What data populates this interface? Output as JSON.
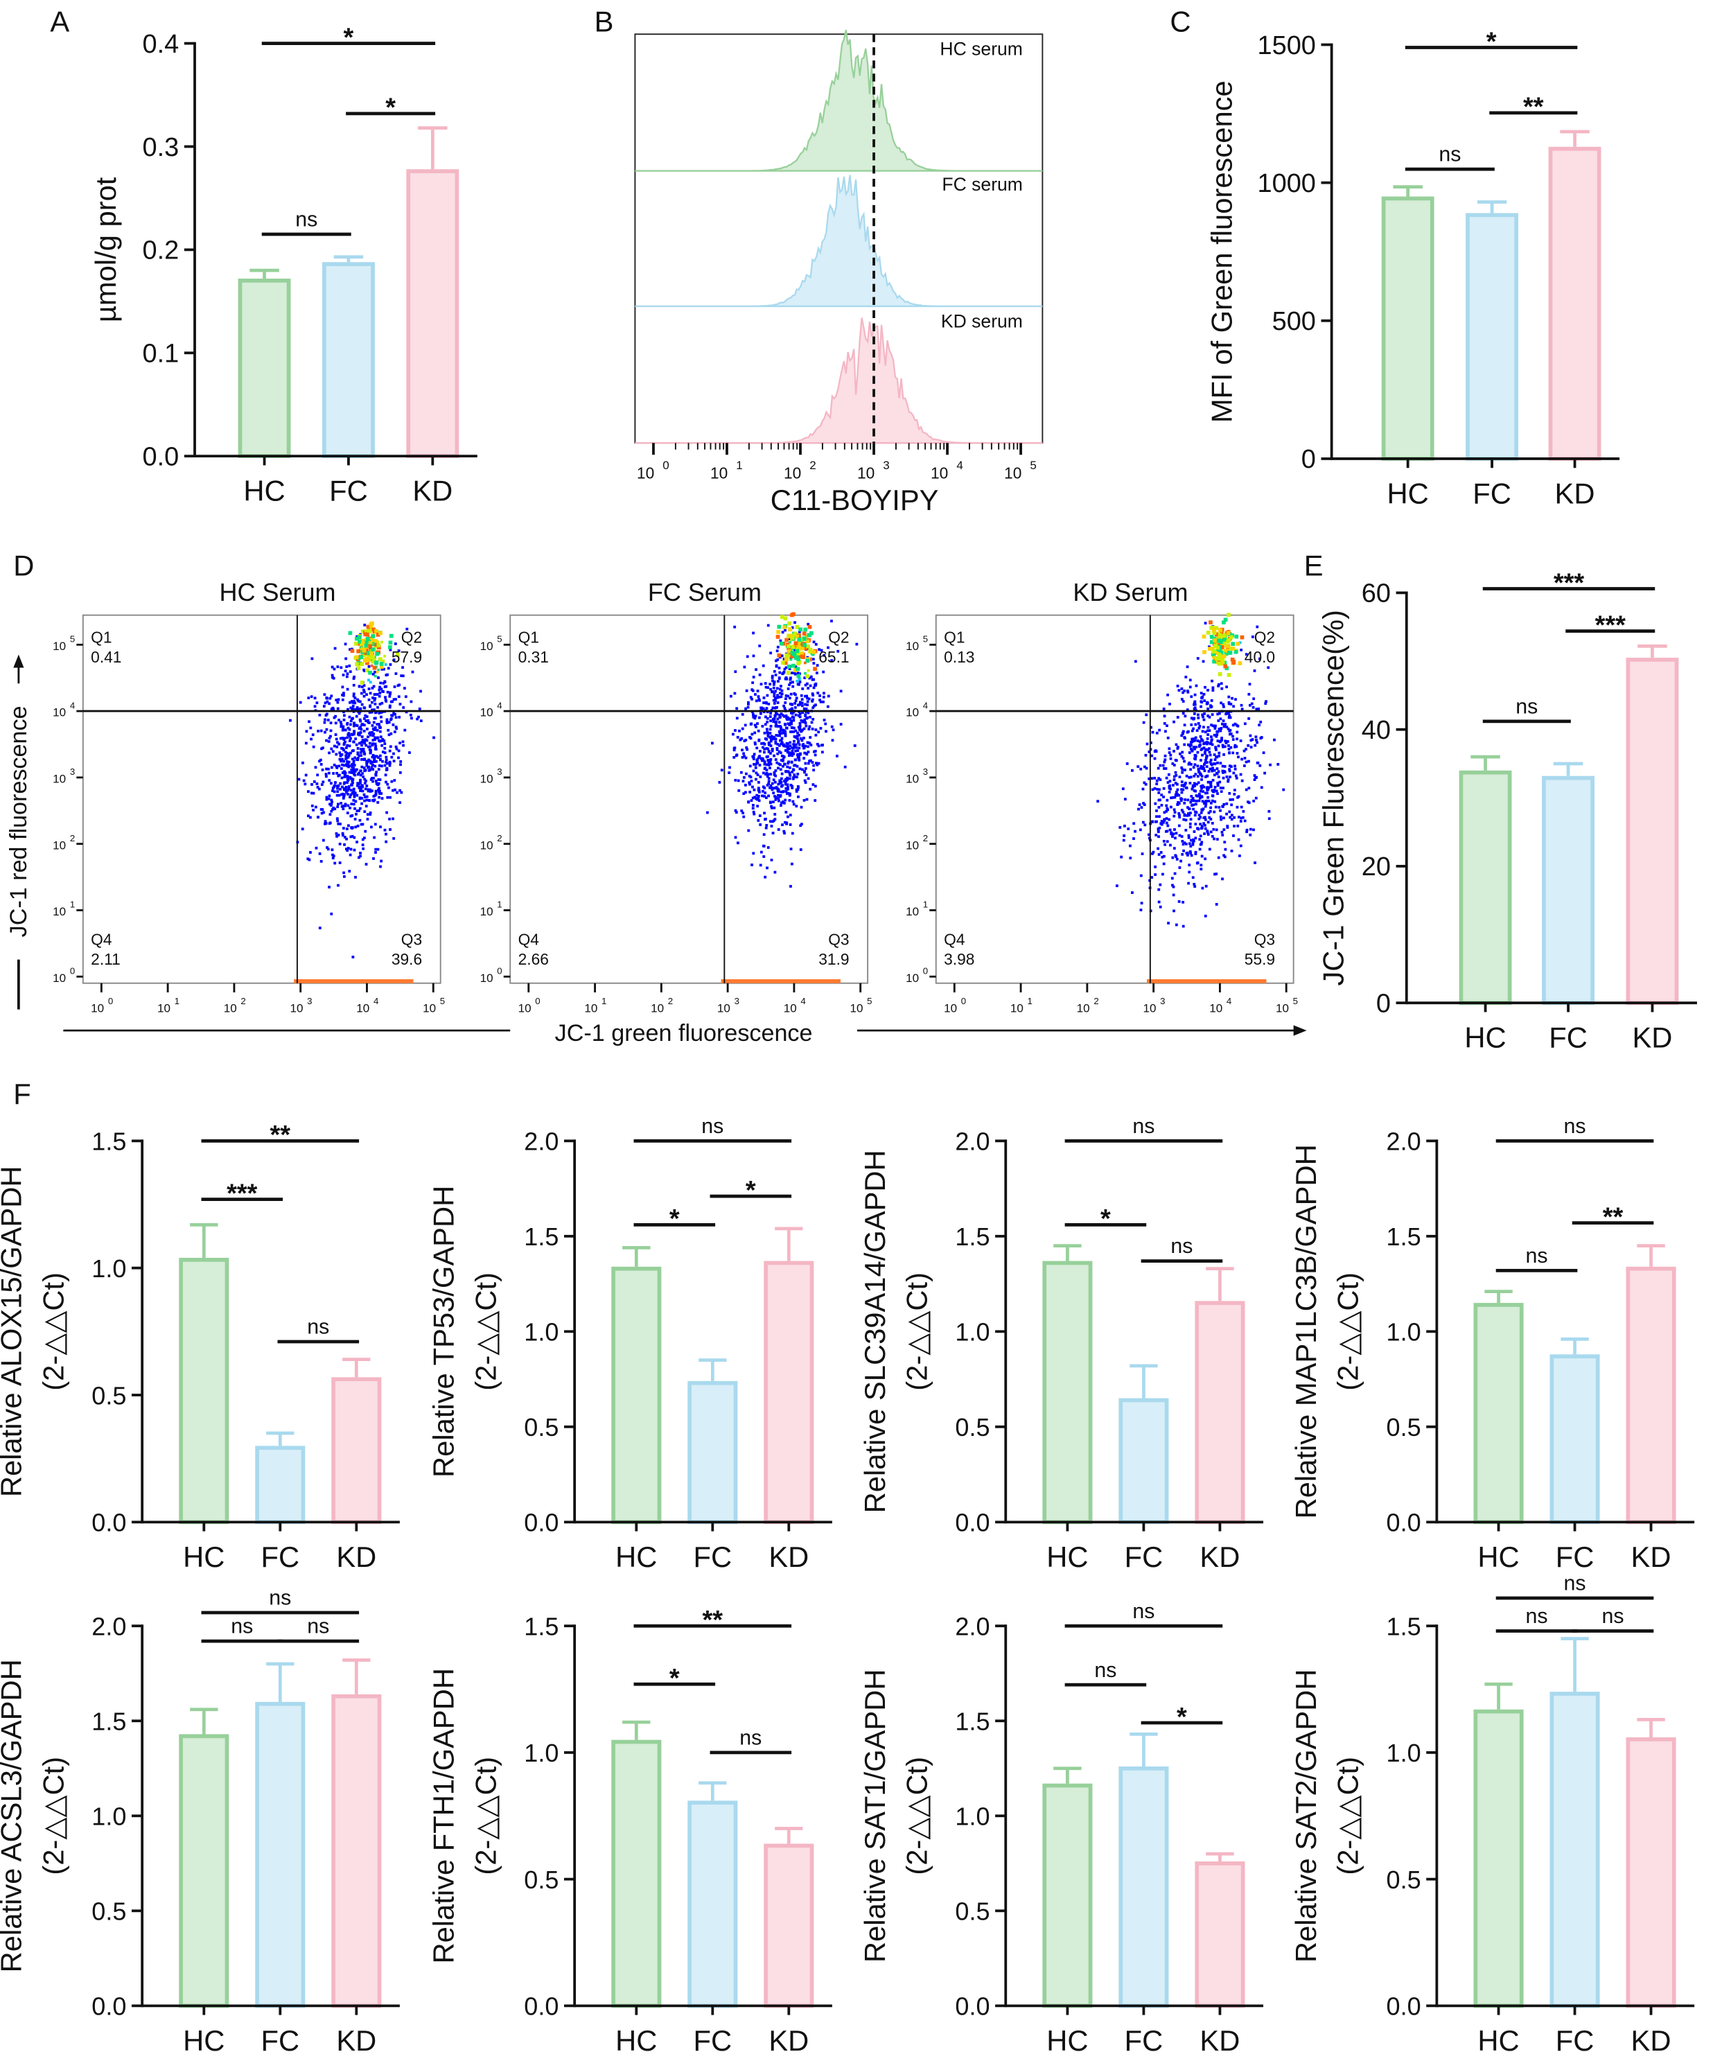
{
  "panel_letters": [
    "A",
    "B",
    "C",
    "D",
    "E",
    "F"
  ],
  "colors": {
    "HC": {
      "fill": "#d6edd7",
      "stroke": "#97d09a"
    },
    "FC": {
      "fill": "#d8eef8",
      "stroke": "#a9d9ee"
    },
    "KD": {
      "fill": "#fbdfe5",
      "stroke": "#f4b6c4"
    }
  },
  "chart_data": [
    {
      "id": "A",
      "type": "bar",
      "ylabel": [
        "µmol/g prot"
      ],
      "ylim": [
        0,
        0.4
      ],
      "yticks": [
        "0.0",
        "0.1",
        "0.2",
        "0.3",
        "0.4"
      ],
      "categories": [
        "HC",
        "FC",
        "KD"
      ],
      "values": [
        0.172,
        0.188,
        0.278
      ],
      "err_top": [
        0.18,
        0.193,
        0.318
      ],
      "sig": [
        {
          "from": 0,
          "to": 1,
          "label": "ns",
          "y": 0.215
        },
        {
          "from": 1,
          "to": 2,
          "label": "*",
          "y": 0.332
        },
        {
          "from": 0,
          "to": 2,
          "label": "*",
          "y": 0.4
        }
      ]
    },
    {
      "id": "C",
      "type": "bar",
      "ylabel": [
        "MFI of Green fluorescence"
      ],
      "ylim": [
        0,
        1500
      ],
      "yticks": [
        "0",
        "500",
        "1000",
        "1500"
      ],
      "categories": [
        "HC",
        "FC",
        "KD"
      ],
      "values": [
        950,
        890,
        1130
      ],
      "err_top": [
        985,
        930,
        1185
      ],
      "sig": [
        {
          "from": 0,
          "to": 1,
          "label": "ns",
          "y": 1049
        },
        {
          "from": 1,
          "to": 2,
          "label": "**",
          "y": 1253
        },
        {
          "from": 0,
          "to": 2,
          "label": "*",
          "y": 1490
        }
      ]
    },
    {
      "id": "E",
      "type": "bar",
      "ylabel": [
        "JC-1 Green Fluorescence(%)"
      ],
      "ylim": [
        0,
        60
      ],
      "yticks": [
        "0",
        "20",
        "40",
        "60"
      ],
      "categories": [
        "HC",
        "FC",
        "KD"
      ],
      "values": [
        34,
        33.2,
        50.5
      ],
      "err_top": [
        36,
        35,
        52.2
      ],
      "sig": [
        {
          "from": 0,
          "to": 1,
          "label": "ns",
          "y": 41.2
        },
        {
          "from": 1,
          "to": 2,
          "label": "***",
          "y": 54.4
        },
        {
          "from": 0,
          "to": 2,
          "label": "***",
          "y": 60.6
        }
      ]
    },
    {
      "id": "F-ALOX15",
      "type": "bar",
      "ylabel": [
        "Relative ALOX15/GAPDH",
        "(2-△△Ct)"
      ],
      "ylim": [
        0,
        1.5
      ],
      "yticks": [
        "0.0",
        "0.5",
        "1.0",
        "1.5"
      ],
      "categories": [
        "HC",
        "FC",
        "KD"
      ],
      "values": [
        1.04,
        0.3,
        0.57
      ],
      "err_top": [
        1.17,
        0.35,
        0.64
      ],
      "sig": [
        {
          "from": 0,
          "to": 1,
          "label": "***",
          "y": 1.27
        },
        {
          "from": 1,
          "to": 2,
          "label": "ns",
          "y": 0.71
        },
        {
          "from": 0,
          "to": 2,
          "label": "**",
          "y": 1.5
        }
      ]
    },
    {
      "id": "F-TP53",
      "type": "bar",
      "ylabel": [
        "Relative TP53/GAPDH",
        "(2-△△Ct)"
      ],
      "ylim": [
        0,
        2
      ],
      "yticks": [
        "0.0",
        "0.5",
        "1.0",
        "1.5",
        "2.0"
      ],
      "categories": [
        "HC",
        "FC",
        "KD"
      ],
      "values": [
        1.34,
        0.74,
        1.37
      ],
      "err_top": [
        1.44,
        0.85,
        1.54
      ],
      "sig": [
        {
          "from": 0,
          "to": 1,
          "label": "*",
          "y": 1.56
        },
        {
          "from": 1,
          "to": 2,
          "label": "*",
          "y": 1.71
        },
        {
          "from": 0,
          "to": 2,
          "label": "ns",
          "y": 2.0
        }
      ]
    },
    {
      "id": "F-SLC39A14",
      "type": "bar",
      "ylabel": [
        "Relative SLC39A14/GAPDH",
        "(2-△△Ct)"
      ],
      "ylim": [
        0,
        2
      ],
      "yticks": [
        "0.0",
        "0.5",
        "1.0",
        "1.5",
        "2.0"
      ],
      "categories": [
        "HC",
        "FC",
        "KD"
      ],
      "values": [
        1.37,
        0.65,
        1.16
      ],
      "err_top": [
        1.45,
        0.82,
        1.33
      ],
      "sig": [
        {
          "from": 0,
          "to": 1,
          "label": "*",
          "y": 1.56
        },
        {
          "from": 1,
          "to": 2,
          "label": "ns",
          "y": 1.37
        },
        {
          "from": 0,
          "to": 2,
          "label": "ns",
          "y": 2.0
        }
      ]
    },
    {
      "id": "F-MAP1LC3B",
      "type": "bar",
      "ylabel": [
        "Relative MAP1LC3B/GAPDH",
        "(2-△△Ct)"
      ],
      "ylim": [
        0,
        2
      ],
      "yticks": [
        "0.0",
        "0.5",
        "1.0",
        "1.5",
        "2.0"
      ],
      "categories": [
        "HC",
        "FC",
        "KD"
      ],
      "values": [
        1.15,
        0.88,
        1.34
      ],
      "err_top": [
        1.21,
        0.96,
        1.45
      ],
      "sig": [
        {
          "from": 0,
          "to": 1,
          "label": "ns",
          "y": 1.32
        },
        {
          "from": 1,
          "to": 2,
          "label": "**",
          "y": 1.57
        },
        {
          "from": 0,
          "to": 2,
          "label": "ns",
          "y": 2.0
        }
      ]
    },
    {
      "id": "F-ACSL3",
      "type": "bar",
      "ylabel": [
        "Relative ACSL3/GAPDH",
        "(2-△△Ct)"
      ],
      "ylim": [
        0,
        2
      ],
      "yticks": [
        "0.0",
        "0.5",
        "1.0",
        "1.5",
        "2.0"
      ],
      "categories": [
        "HC",
        "FC",
        "KD"
      ],
      "values": [
        1.43,
        1.6,
        1.64
      ],
      "err_top": [
        1.56,
        1.8,
        1.82
      ],
      "sig": [
        {
          "from": 0,
          "to": 1,
          "label": "ns",
          "y": 1.92
        },
        {
          "from": 1,
          "to": 2,
          "label": "ns",
          "y": 1.92
        },
        {
          "from": 0,
          "to": 2,
          "label": "ns",
          "y": 2.07
        }
      ]
    },
    {
      "id": "F-FTH1",
      "type": "bar",
      "ylabel": [
        "Relative FTH1/GAPDH",
        "(2-△△Ct)"
      ],
      "ylim": [
        0,
        1.5
      ],
      "yticks": [
        "0.0",
        "0.5",
        "1.0",
        "1.5"
      ],
      "categories": [
        "HC",
        "FC",
        "KD"
      ],
      "values": [
        1.05,
        0.81,
        0.64
      ],
      "err_top": [
        1.12,
        0.88,
        0.7
      ],
      "sig": [
        {
          "from": 0,
          "to": 1,
          "label": "*",
          "y": 1.27
        },
        {
          "from": 1,
          "to": 2,
          "label": "ns",
          "y": 1.0
        },
        {
          "from": 0,
          "to": 2,
          "label": "**",
          "y": 1.5
        }
      ]
    },
    {
      "id": "F-SAT1",
      "type": "bar",
      "ylabel": [
        "Relative SAT1/GAPDH",
        "(2-△△Ct)"
      ],
      "ylim": [
        0,
        2
      ],
      "yticks": [
        "0.0",
        "0.5",
        "1.0",
        "1.5",
        "2.0"
      ],
      "categories": [
        "HC",
        "FC",
        "KD"
      ],
      "values": [
        1.17,
        1.26,
        0.76
      ],
      "err_top": [
        1.25,
        1.43,
        0.8
      ],
      "sig": [
        {
          "from": 0,
          "to": 1,
          "label": "ns",
          "y": 1.69
        },
        {
          "from": 1,
          "to": 2,
          "label": "*",
          "y": 1.49
        },
        {
          "from": 0,
          "to": 2,
          "label": "ns",
          "y": 2.0
        }
      ]
    },
    {
      "id": "F-SAT2",
      "type": "bar",
      "ylabel": [
        "Relative SAT2/GAPDH",
        "(2-△△Ct)"
      ],
      "ylim": [
        0,
        1.5
      ],
      "yticks": [
        "0.0",
        "0.5",
        "1.0",
        "1.5"
      ],
      "categories": [
        "HC",
        "FC",
        "KD"
      ],
      "values": [
        1.17,
        1.24,
        1.06
      ],
      "err_top": [
        1.27,
        1.45,
        1.13
      ],
      "sig": [
        {
          "from": 0,
          "to": 1,
          "label": "ns",
          "y": 1.48
        },
        {
          "from": 1,
          "to": 2,
          "label": "ns",
          "y": 1.48
        },
        {
          "from": 0,
          "to": 2,
          "label": "ns",
          "y": 1.61
        }
      ]
    }
  ],
  "histogram": {
    "id": "B",
    "type": "area",
    "xlabel": "C11-BOYIPY",
    "xscale": "log",
    "xlim_exp": [
      0,
      5
    ],
    "xtick_base": "10",
    "xtick_exps": [
      "0",
      "1",
      "2",
      "3",
      "4",
      "5"
    ],
    "threshold_log10": 3,
    "series": [
      {
        "name": "HC serum",
        "group": "HC",
        "peak_log10": 2.72,
        "spread": 0.36
      },
      {
        "name": "FC serum",
        "group": "FC",
        "peak_log10": 2.62,
        "spread": 0.33
      },
      {
        "name": "KD serum",
        "group": "KD",
        "peak_log10": 2.95,
        "spread": 0.35
      }
    ]
  },
  "scatter": {
    "id": "D",
    "type": "scatter",
    "xlabel": "JC-1 green fluorescence",
    "ylabel": "JC-1 red fluorescence",
    "tick_base": "10",
    "tick_exps": [
      "0",
      "1",
      "2",
      "3",
      "4",
      "5"
    ],
    "plots": [
      {
        "title": "HC Serum",
        "quadrants": {
          "Q1": "0.41",
          "Q2": "57.9",
          "Q3": "39.6",
          "Q4": "2.11"
        }
      },
      {
        "title": "FC Serum",
        "quadrants": {
          "Q1": "0.31",
          "Q2": "65.1",
          "Q3": "31.9",
          "Q4": "2.66"
        }
      },
      {
        "title": "KD Serum",
        "quadrants": {
          "Q1": "0.13",
          "Q2": "40.0",
          "Q3": "55.9",
          "Q4": "3.98"
        }
      }
    ]
  }
}
